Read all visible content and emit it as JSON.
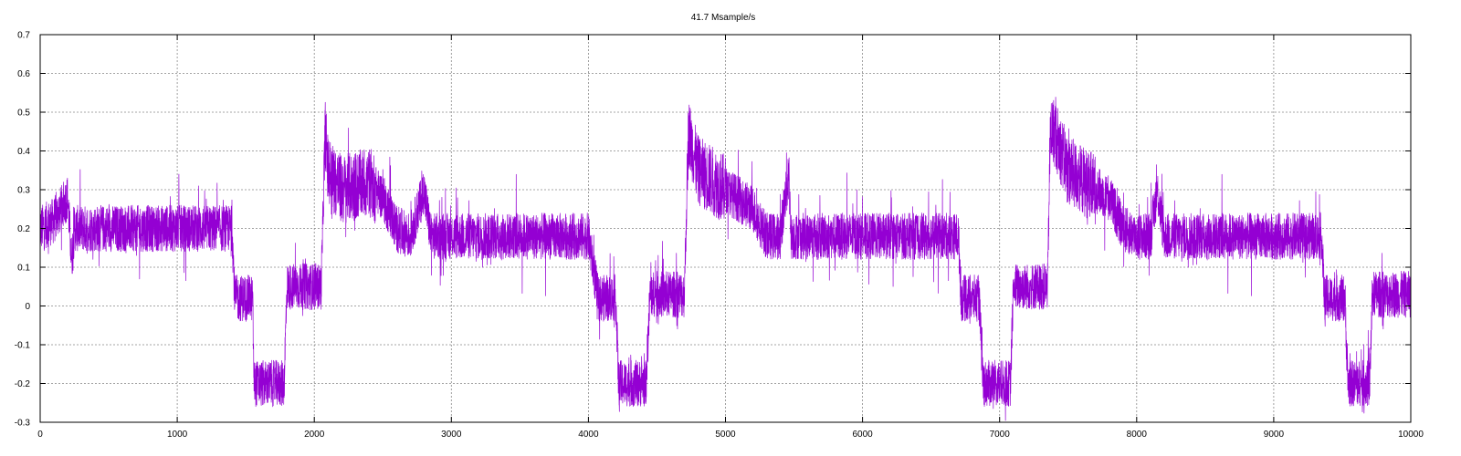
{
  "chart_data": {
    "type": "line",
    "title": "41.7 Msample/s",
    "xlabel": "",
    "ylabel": "",
    "xlim": [
      0,
      10000
    ],
    "ylim": [
      -0.3,
      0.7
    ],
    "x_ticks": [
      0,
      1000,
      2000,
      3000,
      4000,
      5000,
      6000,
      7000,
      8000,
      9000,
      10000
    ],
    "y_ticks": [
      -0.3,
      -0.2,
      -0.1,
      0,
      0.1,
      0.2,
      0.3,
      0.4,
      0.5,
      0.6,
      0.7
    ],
    "x_tick_labels": [
      "0",
      "1000",
      "2000",
      "3000",
      "4000",
      "5000",
      "6000",
      "7000",
      "8000",
      "9000",
      "10000"
    ],
    "y_tick_labels": [
      "-0.3",
      "-0.2",
      "-0.1",
      "0",
      "0.1",
      "0.2",
      "0.3",
      "0.4",
      "0.5",
      "0.6",
      "0.7"
    ],
    "grid": true,
    "legend": "none",
    "series": [
      {
        "color": "#9400d3",
        "x": [
          0,
          100,
          200,
          230,
          250,
          400,
          800,
          1200,
          1400,
          1420,
          1550,
          1560,
          1600,
          1780,
          1800,
          1850,
          2050,
          2080,
          2100,
          2200,
          2400,
          2500,
          2600,
          2700,
          2800,
          2850,
          2900,
          3500,
          4000,
          4070,
          4090,
          4200,
          4220,
          4420,
          4450,
          4700,
          4730,
          4800,
          5000,
          5200,
          5300,
          5400,
          5460,
          5480,
          5520,
          6000,
          6600,
          6700,
          6720,
          6850,
          6880,
          7080,
          7100,
          7350,
          7370,
          7400,
          7500,
          7700,
          7800,
          7900,
          8000,
          8100,
          8150,
          8200,
          8800,
          9350,
          9370,
          9520,
          9540,
          9700,
          9720,
          10000
        ],
        "y": [
          0.2,
          0.22,
          0.28,
          0.12,
          0.2,
          0.2,
          0.2,
          0.2,
          0.2,
          0.02,
          0.02,
          -0.2,
          -0.2,
          -0.2,
          0.05,
          0.05,
          0.05,
          0.45,
          0.35,
          0.3,
          0.32,
          0.28,
          0.2,
          0.18,
          0.3,
          0.18,
          0.18,
          0.18,
          0.18,
          0.02,
          0.02,
          0.02,
          -0.2,
          -0.2,
          0.03,
          0.03,
          0.45,
          0.35,
          0.3,
          0.25,
          0.18,
          0.18,
          0.35,
          0.18,
          0.18,
          0.18,
          0.18,
          0.18,
          0.02,
          0.02,
          -0.2,
          -0.2,
          0.05,
          0.05,
          0.45,
          0.45,
          0.35,
          0.3,
          0.28,
          0.2,
          0.18,
          0.18,
          0.3,
          0.18,
          0.18,
          0.18,
          0.02,
          0.02,
          -0.2,
          -0.2,
          0.03,
          0.03
        ]
      }
    ]
  }
}
